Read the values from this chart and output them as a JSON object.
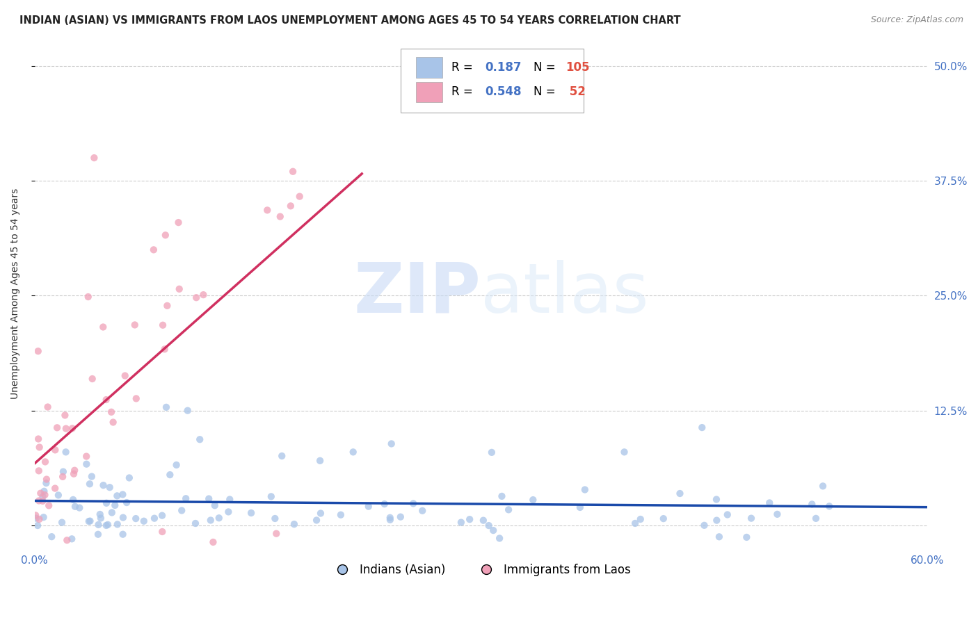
{
  "title": "INDIAN (ASIAN) VS IMMIGRANTS FROM LAOS UNEMPLOYMENT AMONG AGES 45 TO 54 YEARS CORRELATION CHART",
  "source": "Source: ZipAtlas.com",
  "ylabel_label": "Unemployment Among Ages 45 to 54 years",
  "xmin": 0.0,
  "xmax": 0.6,
  "ymin": -0.025,
  "ymax": 0.53,
  "yticks": [
    0.0,
    0.125,
    0.25,
    0.375,
    0.5
  ],
  "ytick_labels_right": [
    "",
    "12.5%",
    "25.0%",
    "37.5%",
    "50.0%"
  ],
  "xticks": [
    0.0,
    0.6
  ],
  "xtick_labels": [
    "0.0%",
    "60.0%"
  ],
  "grid_color": "#cccccc",
  "background_color": "#ffffff",
  "series": [
    {
      "name": "Indians (Asian)",
      "R": 0.187,
      "N": 105,
      "color": "#a8c4e8",
      "line_color": "#1a4aaa",
      "marker_size": 55
    },
    {
      "name": "Immigrants from Laos",
      "R": 0.548,
      "N": 52,
      "color": "#f0a0b8",
      "line_color": "#d03060",
      "marker_size": 55
    }
  ],
  "legend_patch_blue": "#a8c4e8",
  "legend_patch_pink": "#f0a0b8",
  "legend_R_color": "#4472c4",
  "legend_N_color": "#e05040",
  "title_color": "#222222",
  "source_color": "#888888",
  "tick_color": "#4472c4",
  "ylabel_color": "#333333"
}
